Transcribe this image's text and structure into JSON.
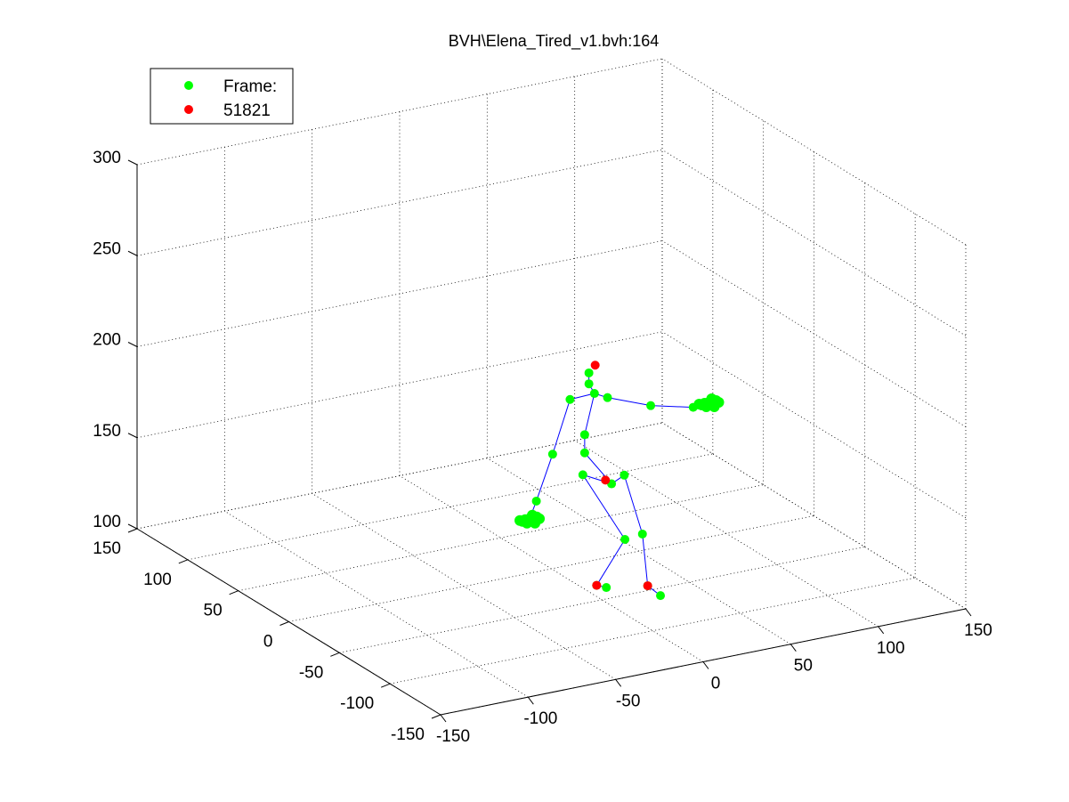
{
  "chart_data": {
    "type": "scatter3d",
    "title": "BVH\\Elena_Tired_v1.bvh:164",
    "x_axis": {
      "ticks": [
        -150,
        -100,
        -50,
        0,
        50,
        100,
        150
      ],
      "range": [
        -150,
        150
      ]
    },
    "y_axis": {
      "ticks": [
        -150,
        -100,
        -50,
        0,
        50,
        100,
        150
      ],
      "range": [
        -150,
        150
      ]
    },
    "z_axis": {
      "ticks": [
        100,
        150,
        200,
        250,
        300
      ],
      "range": [
        100,
        300
      ]
    },
    "grid": true,
    "legend": {
      "placement": "top-left",
      "entries": [
        {
          "label": "Frame:",
          "color": "#00ff00"
        },
        {
          "label": "51821",
          "color": "#ff0000"
        }
      ]
    },
    "colors": {
      "joint": "#00ff00",
      "marker": "#ff0000",
      "bone": "#0000ff"
    },
    "joints": [
      {
        "name": "hips",
        "x": 28,
        "y": -11,
        "z": 145
      },
      {
        "name": "spine",
        "x": 19,
        "y": 0,
        "z": 160
      },
      {
        "name": "spine1",
        "x": 19,
        "y": 0,
        "z": 170
      },
      {
        "name": "neck",
        "x": 24,
        "y": -1,
        "z": 192
      },
      {
        "name": "head",
        "x": 22,
        "y": 1,
        "z": 197
      },
      {
        "name": "head-top",
        "x": 22,
        "y": 1,
        "z": 203
      },
      {
        "name": "l-shoulder",
        "x": 17,
        "y": 11,
        "z": 186
      },
      {
        "name": "l-elbow",
        "x": 3,
        "y": 4,
        "z": 161
      },
      {
        "name": "l-wrist",
        "x": -19,
        "y": -18,
        "z": 147
      },
      {
        "name": "l-hand",
        "x": -24,
        "y": -20,
        "z": 139
      },
      {
        "name": "r-shoulder",
        "x": 28,
        "y": -7,
        "z": 191
      },
      {
        "name": "r-elbow",
        "x": 55,
        "y": -3,
        "z": 180
      },
      {
        "name": "r-wrist",
        "x": 81,
        "y": 0,
        "z": 173
      },
      {
        "name": "r-hand",
        "x": 90,
        "y": 0,
        "z": 174
      },
      {
        "name": "l-hip",
        "x": 22,
        "y": 7,
        "z": 145
      },
      {
        "name": "l-knee",
        "x": 42,
        "y": 0,
        "z": 108
      },
      {
        "name": "l-ankle",
        "x": 27,
        "y": 2,
        "z": 85
      },
      {
        "name": "l-toe",
        "x": 36,
        "y": 8,
        "z": 80
      },
      {
        "name": "r-hip",
        "x": 37,
        "y": -8,
        "z": 147
      },
      {
        "name": "r-knee",
        "x": 52,
        "y": 0,
        "z": 109
      },
      {
        "name": "r-ankle",
        "x": 55,
        "y": 0,
        "z": 80
      },
      {
        "name": "r-toe",
        "x": 60,
        "y": -4,
        "z": 75
      }
    ],
    "markers": [
      {
        "name": "head-marker",
        "x": 25,
        "y": 0,
        "z": 207
      },
      {
        "name": "hip-marker",
        "x": 28,
        "y": -5,
        "z": 145
      },
      {
        "name": "l-ankle-marker",
        "x": 27,
        "y": 2,
        "z": 85
      },
      {
        "name": "r-ankle-marker",
        "x": 55,
        "y": 0,
        "z": 80
      }
    ],
    "bones": [
      [
        "hips",
        "spine"
      ],
      [
        "spine",
        "spine1"
      ],
      [
        "spine1",
        "neck"
      ],
      [
        "neck",
        "head"
      ],
      [
        "head",
        "head-top"
      ],
      [
        "neck",
        "l-shoulder"
      ],
      [
        "l-shoulder",
        "l-elbow"
      ],
      [
        "l-elbow",
        "l-wrist"
      ],
      [
        "l-wrist",
        "l-hand"
      ],
      [
        "neck",
        "r-shoulder"
      ],
      [
        "r-shoulder",
        "r-elbow"
      ],
      [
        "r-elbow",
        "r-wrist"
      ],
      [
        "r-wrist",
        "r-hand"
      ],
      [
        "hips",
        "l-hip"
      ],
      [
        "l-hip",
        "l-knee"
      ],
      [
        "l-knee",
        "l-ankle"
      ],
      [
        "l-ankle",
        "l-toe"
      ],
      [
        "hips",
        "r-hip"
      ],
      [
        "r-hip",
        "r-knee"
      ],
      [
        "r-knee",
        "r-ankle"
      ],
      [
        "r-ankle",
        "r-toe"
      ]
    ],
    "hand_clusters": [
      {
        "name": "l-hand-cluster",
        "x": -24,
        "y": -20,
        "z": 139
      },
      {
        "name": "r-hand-cluster",
        "x": 90,
        "y": 0,
        "z": 174
      }
    ]
  }
}
